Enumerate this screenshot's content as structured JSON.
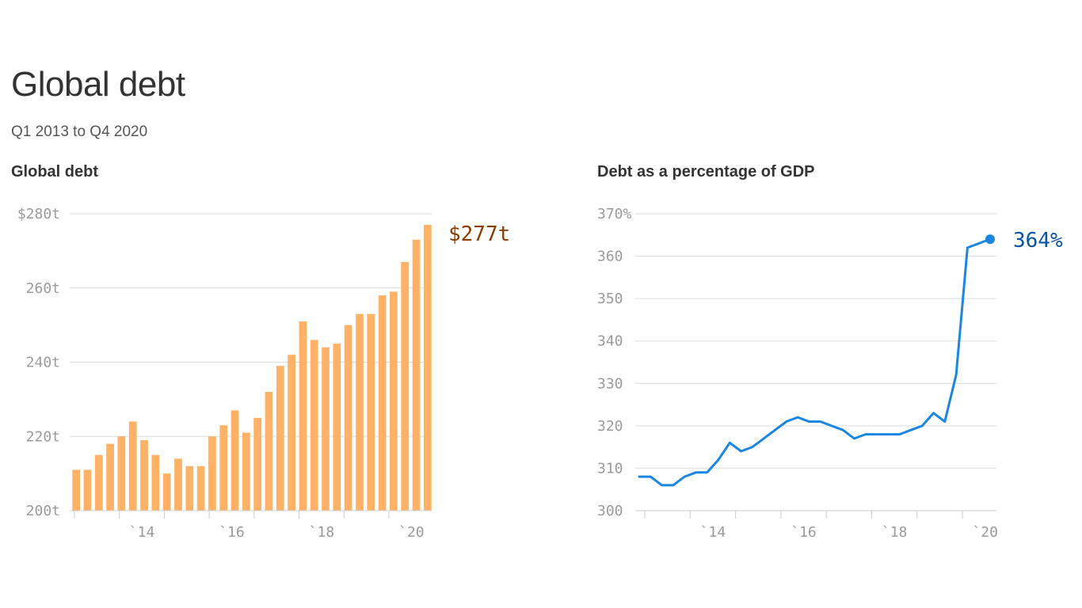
{
  "title": "Global debt",
  "subtitle": "Q1 2013 to Q4 2020",
  "colors": {
    "bar": "#ffb266",
    "bar_label": "#8a3d00",
    "line": "#1a86e0",
    "line_label": "#0a55a3"
  },
  "chart_data": [
    {
      "type": "bar",
      "title": "Global debt",
      "ylim": [
        200,
        280
      ],
      "yticks": [
        {
          "value": 200,
          "label": "200t"
        },
        {
          "value": 220,
          "label": "220t"
        },
        {
          "value": 240,
          "label": "240t"
        },
        {
          "value": 260,
          "label": "260t"
        },
        {
          "value": 280,
          "label": "$280t"
        }
      ],
      "xticks": [
        {
          "value": 2014,
          "label": "`14"
        },
        {
          "value": 2016,
          "label": "`16"
        },
        {
          "value": 2018,
          "label": "`18"
        },
        {
          "value": 2020,
          "label": "`20"
        }
      ],
      "xrange": [
        2013.0,
        2020.9
      ],
      "x": [
        2013.0,
        2013.25,
        2013.5,
        2013.75,
        2014.0,
        2014.25,
        2014.5,
        2014.75,
        2015.0,
        2015.25,
        2015.5,
        2015.75,
        2016.0,
        2016.25,
        2016.5,
        2016.75,
        2017.0,
        2017.25,
        2017.5,
        2017.75,
        2018.0,
        2018.25,
        2018.5,
        2018.75,
        2019.0,
        2019.25,
        2019.5,
        2019.75,
        2020.0,
        2020.25,
        2020.5,
        2020.75
      ],
      "values": [
        211,
        211,
        215,
        218,
        220,
        224,
        219,
        215,
        210,
        214,
        212,
        212,
        220,
        223,
        227,
        221,
        225,
        232,
        239,
        242,
        251,
        246,
        244,
        245,
        250,
        253,
        253,
        258,
        259,
        267,
        273,
        277
      ],
      "end_label": "$277t"
    },
    {
      "type": "line",
      "title": "Debt as a percentage of GDP",
      "ylim": [
        300,
        370
      ],
      "yticks": [
        {
          "value": 300,
          "label": "300"
        },
        {
          "value": 310,
          "label": "310"
        },
        {
          "value": 320,
          "label": "320"
        },
        {
          "value": 330,
          "label": "330"
        },
        {
          "value": 340,
          "label": "340"
        },
        {
          "value": 350,
          "label": "350"
        },
        {
          "value": 360,
          "label": "360"
        },
        {
          "value": 370,
          "label": "370%"
        }
      ],
      "xticks": [
        {
          "value": 2014,
          "label": "`14"
        },
        {
          "value": 2016,
          "label": "`16"
        },
        {
          "value": 2018,
          "label": "`18"
        },
        {
          "value": 2020,
          "label": "`20"
        }
      ],
      "xrange": [
        2013.0,
        2020.75
      ],
      "x": [
        2013.0,
        2013.25,
        2013.5,
        2013.75,
        2014.0,
        2014.25,
        2014.5,
        2014.75,
        2015.0,
        2015.25,
        2015.5,
        2015.75,
        2016.0,
        2016.25,
        2016.5,
        2016.75,
        2017.0,
        2017.25,
        2017.5,
        2017.75,
        2018.0,
        2018.25,
        2018.5,
        2018.75,
        2019.0,
        2019.25,
        2019.5,
        2019.75,
        2020.0,
        2020.25,
        2020.5,
        2020.75
      ],
      "values": [
        308,
        308,
        306,
        306,
        308,
        309,
        309,
        312,
        316,
        314,
        315,
        317,
        319,
        321,
        322,
        321,
        321,
        320,
        319,
        317,
        318,
        318,
        318,
        318,
        319,
        320,
        323,
        321,
        332,
        362,
        363,
        364
      ],
      "end_label": "364%"
    }
  ]
}
